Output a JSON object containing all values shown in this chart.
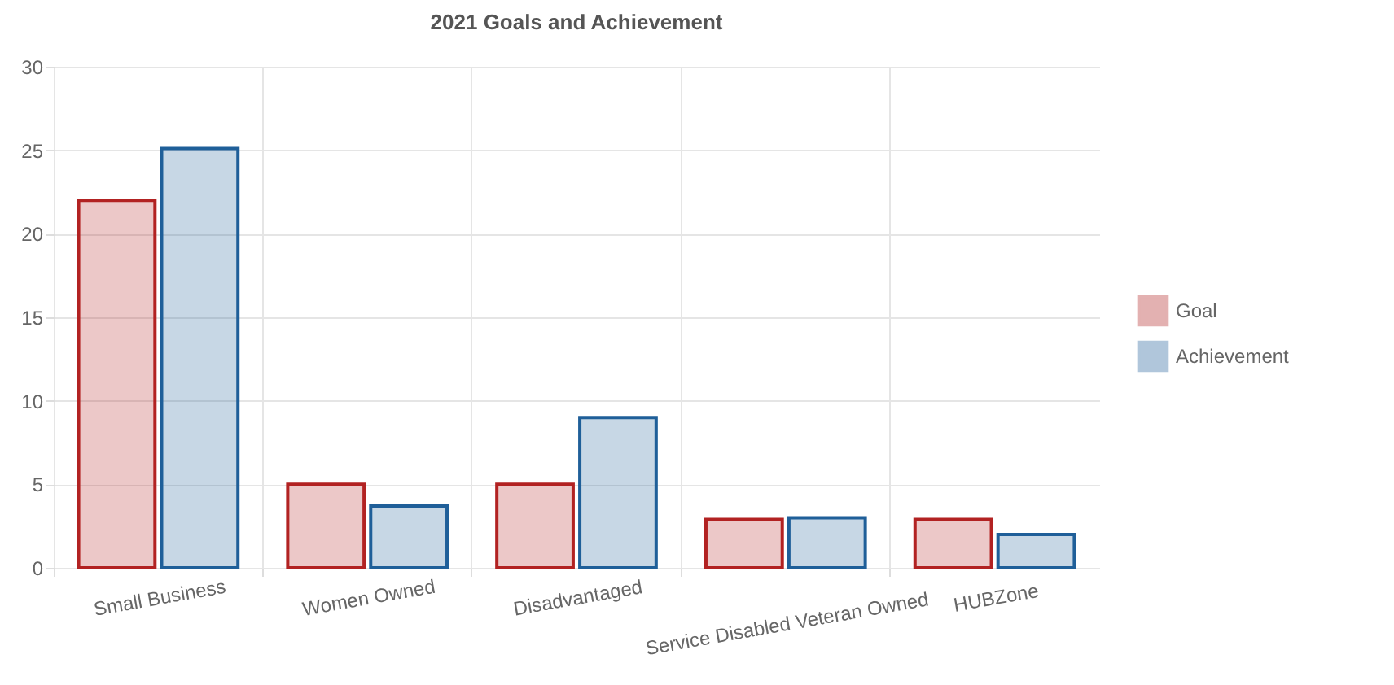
{
  "chart_data": {
    "type": "bar",
    "title": "2021 Goals and Achievement",
    "categories": [
      "Small Business",
      "Women Owned",
      "Disadvantaged",
      "Service Disabled Veteran Owned",
      "HUBZone"
    ],
    "series": [
      {
        "name": "Goal",
        "color": "#b22222",
        "values": [
          22,
          5,
          5,
          2.9,
          2.9
        ]
      },
      {
        "name": "Achievement",
        "color": "#1f5f99",
        "values": [
          25.1,
          3.7,
          9,
          3,
          2
        ]
      }
    ],
    "ylim": [
      0,
      30
    ],
    "yticks": [
      0,
      5,
      10,
      15,
      20,
      25,
      30
    ],
    "grid": true,
    "legend": "right"
  }
}
